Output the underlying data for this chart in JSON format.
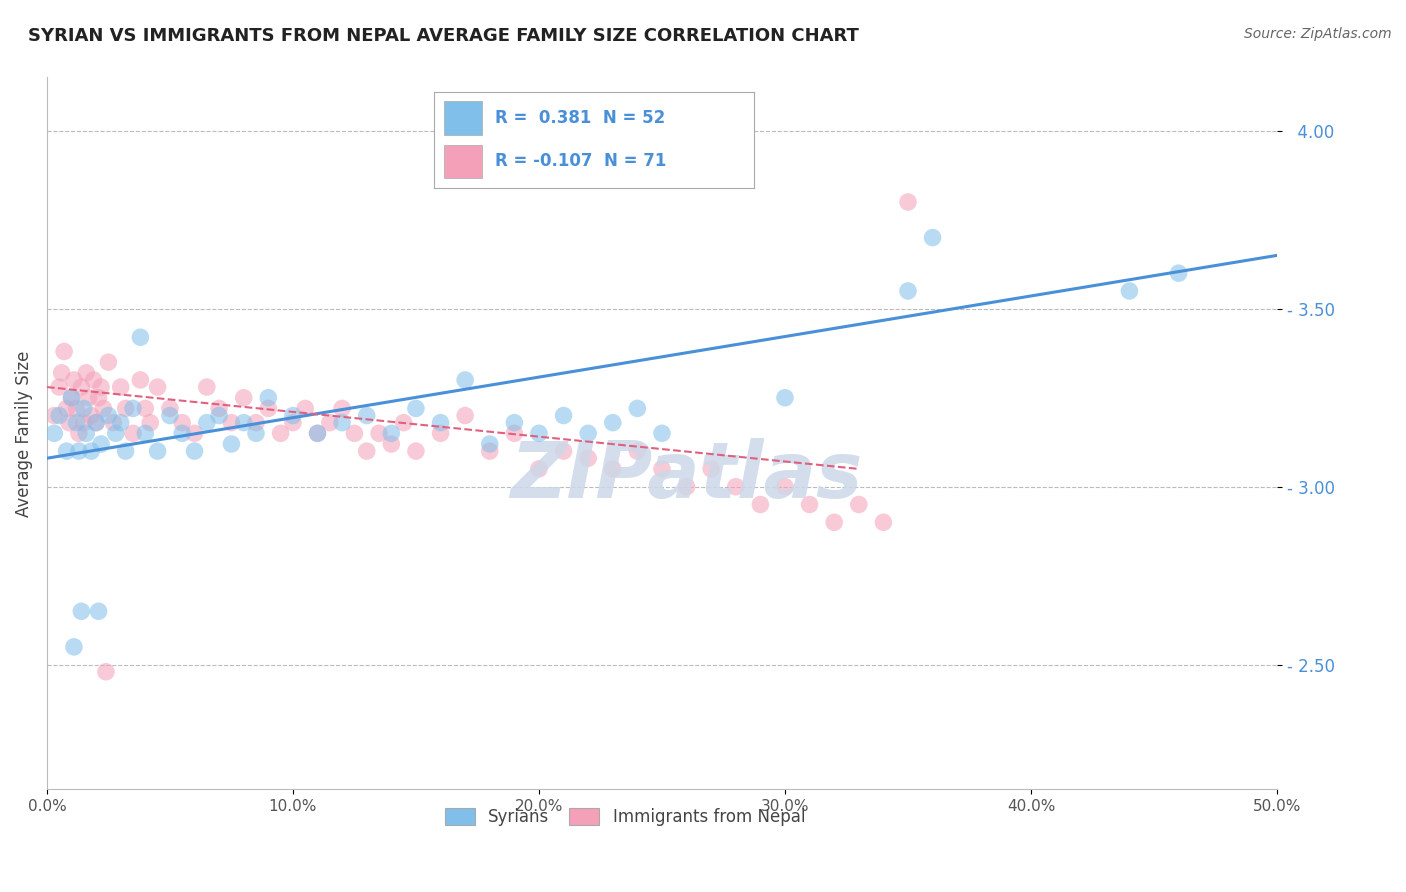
{
  "title": "SYRIAN VS IMMIGRANTS FROM NEPAL AVERAGE FAMILY SIZE CORRELATION CHART",
  "source": "Source: ZipAtlas.com",
  "ylabel": "Average Family Size",
  "xmin": 0.0,
  "xmax": 50.0,
  "ymin": 2.15,
  "ymax": 4.15,
  "yticks": [
    2.5,
    3.0,
    3.5,
    4.0
  ],
  "xticks": [
    0,
    10,
    20,
    30,
    40,
    50
  ],
  "xticklabels": [
    "0.0%",
    "10.0%",
    "20.0%",
    "30.0%",
    "40.0%",
    "50.0%"
  ],
  "yticklabels_right": [
    "2.50",
    "3.00",
    "3.50",
    "4.00"
  ],
  "legend_line1": "R =  0.381  N = 52",
  "legend_line2": "R = -0.107  N = 71",
  "legend_labels": [
    "Syrians",
    "Immigrants from Nepal"
  ],
  "blue_scatter_x": [
    0.3,
    0.5,
    0.8,
    1.0,
    1.2,
    1.3,
    1.5,
    1.6,
    1.8,
    2.0,
    2.2,
    2.5,
    2.8,
    3.0,
    3.2,
    3.5,
    4.0,
    4.5,
    5.0,
    5.5,
    6.0,
    6.5,
    7.0,
    7.5,
    8.0,
    8.5,
    9.0,
    10.0,
    11.0,
    12.0,
    13.0,
    14.0,
    15.0,
    16.0,
    17.0,
    18.0,
    19.0,
    20.0,
    21.0,
    22.0,
    23.0,
    24.0,
    25.0,
    30.0,
    35.0,
    36.0,
    44.0,
    46.0,
    1.1,
    1.4,
    2.1,
    3.8
  ],
  "blue_scatter_y": [
    3.15,
    3.2,
    3.1,
    3.25,
    3.18,
    3.1,
    3.22,
    3.15,
    3.1,
    3.18,
    3.12,
    3.2,
    3.15,
    3.18,
    3.1,
    3.22,
    3.15,
    3.1,
    3.2,
    3.15,
    3.1,
    3.18,
    3.2,
    3.12,
    3.18,
    3.15,
    3.25,
    3.2,
    3.15,
    3.18,
    3.2,
    3.15,
    3.22,
    3.18,
    3.3,
    3.12,
    3.18,
    3.15,
    3.2,
    3.15,
    3.18,
    3.22,
    3.15,
    3.25,
    3.55,
    3.7,
    3.55,
    3.6,
    2.55,
    2.65,
    2.65,
    3.42
  ],
  "pink_scatter_x": [
    0.3,
    0.5,
    0.6,
    0.7,
    0.8,
    0.9,
    1.0,
    1.1,
    1.2,
    1.3,
    1.4,
    1.5,
    1.6,
    1.7,
    1.8,
    1.9,
    2.0,
    2.1,
    2.2,
    2.3,
    2.5,
    2.7,
    3.0,
    3.2,
    3.5,
    3.8,
    4.0,
    4.2,
    4.5,
    5.0,
    5.5,
    6.0,
    6.5,
    7.0,
    7.5,
    8.0,
    8.5,
    9.0,
    9.5,
    10.0,
    10.5,
    11.0,
    11.5,
    12.0,
    12.5,
    13.0,
    13.5,
    14.0,
    14.5,
    15.0,
    16.0,
    17.0,
    18.0,
    19.0,
    20.0,
    21.0,
    22.0,
    23.0,
    24.0,
    25.0,
    26.0,
    27.0,
    28.0,
    29.0,
    30.0,
    31.0,
    32.0,
    33.0,
    34.0,
    35.0,
    2.4
  ],
  "pink_scatter_y": [
    3.2,
    3.28,
    3.32,
    3.38,
    3.22,
    3.18,
    3.25,
    3.3,
    3.22,
    3.15,
    3.28,
    3.18,
    3.32,
    3.25,
    3.2,
    3.3,
    3.18,
    3.25,
    3.28,
    3.22,
    3.35,
    3.18,
    3.28,
    3.22,
    3.15,
    3.3,
    3.22,
    3.18,
    3.28,
    3.22,
    3.18,
    3.15,
    3.28,
    3.22,
    3.18,
    3.25,
    3.18,
    3.22,
    3.15,
    3.18,
    3.22,
    3.15,
    3.18,
    3.22,
    3.15,
    3.1,
    3.15,
    3.12,
    3.18,
    3.1,
    3.15,
    3.2,
    3.1,
    3.15,
    3.05,
    3.1,
    3.08,
    3.05,
    3.1,
    3.05,
    3.0,
    3.05,
    3.0,
    2.95,
    3.0,
    2.95,
    2.9,
    2.95,
    2.9,
    3.8,
    2.48
  ],
  "blue_line_x": [
    0.0,
    50.0
  ],
  "blue_line_y": [
    3.08,
    3.65
  ],
  "pink_line_x": [
    0.0,
    33.0
  ],
  "pink_line_y": [
    3.28,
    3.05
  ],
  "blue_color": "#7fbfea",
  "pink_color": "#f4a0b8",
  "blue_line_color": "#4a90d9",
  "pink_line_color": "#e06080",
  "grid_color": "#bbbbbb",
  "background_color": "#ffffff",
  "watermark_color": "#cdd8e8",
  "title_fontsize": 13,
  "source_fontsize": 10,
  "ylabel_fontsize": 12,
  "tick_fontsize": 11,
  "legend_fontsize": 12,
  "scatter_size": 160,
  "scatter_alpha": 0.55
}
